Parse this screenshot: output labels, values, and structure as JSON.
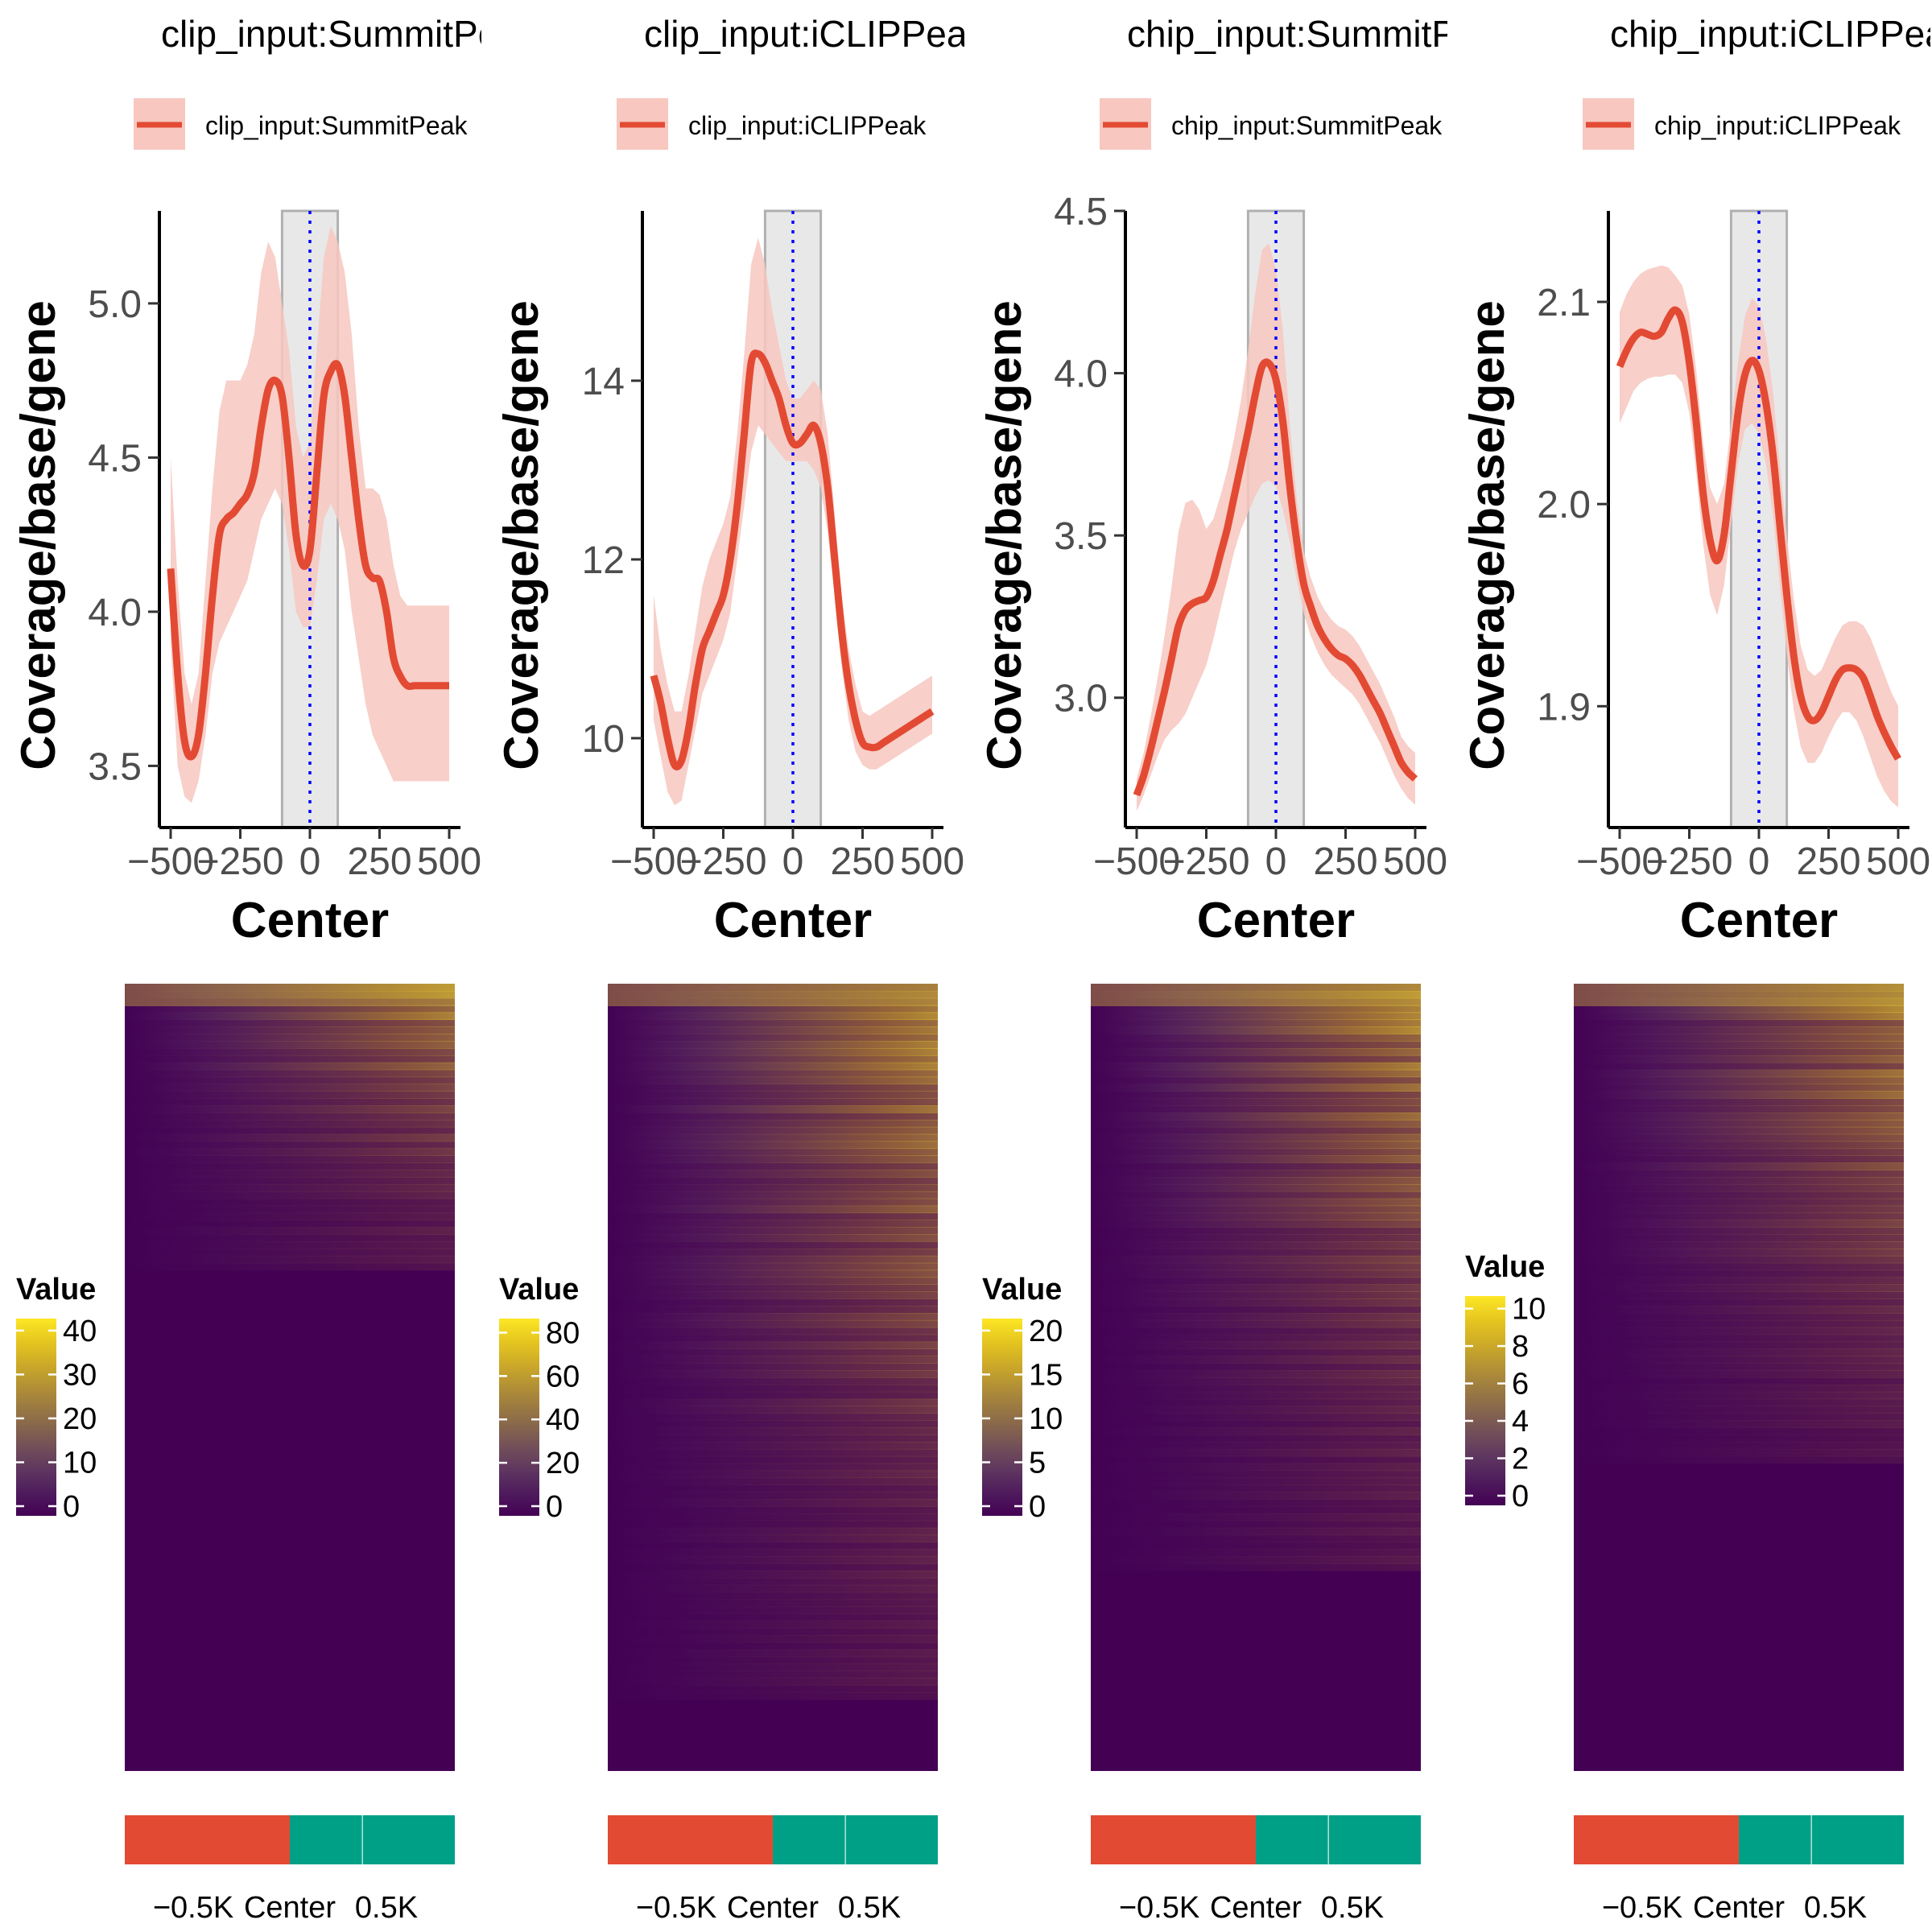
{
  "figure": {
    "heatmap_legend_title": "Value",
    "heatmap_xlabels": [
      "−0.5K",
      "Center",
      "0.5K"
    ],
    "colors": {
      "line": "#e34a33",
      "ribbon": "#f7c7c0",
      "center_line": "#0000ff",
      "window_fill": "#e8e8e8",
      "window_stroke": "#b0b0b0",
      "viridis_low": "#440154",
      "viridis_mid": "#7a5a4a",
      "viridis_high": "#fde725",
      "anno_left": "#e34a33",
      "anno_right": "#00a087"
    }
  },
  "chart_data": [
    {
      "type": "line",
      "title": "clip_input:SummitPeak",
      "legend": "clip_input:SummitPeak",
      "xlabel": "Center",
      "ylabel": "Coverage/base/gene",
      "xlim": [
        -520,
        520
      ],
      "ylim": [
        3.3,
        5.3
      ],
      "xticks": [
        -500,
        -250,
        0,
        250,
        500
      ],
      "xtick_labels": [
        "−500",
        "−250",
        "0",
        "250",
        "500"
      ],
      "yticks": [
        3.5,
        4.0,
        4.5,
        5.0
      ],
      "ytick_labels": [
        "3.5",
        "4.0",
        "4.5",
        "5.0"
      ],
      "center_window": [
        -100,
        100
      ],
      "x": [
        -500,
        -475,
        -450,
        -425,
        -400,
        -375,
        -350,
        -325,
        -300,
        -275,
        -250,
        -225,
        -200,
        -175,
        -150,
        -125,
        -100,
        -75,
        -50,
        -25,
        0,
        25,
        50,
        75,
        100,
        125,
        150,
        175,
        200,
        225,
        250,
        275,
        300,
        325,
        350,
        375,
        400,
        425,
        450,
        475,
        500
      ],
      "y": [
        4.14,
        3.8,
        3.58,
        3.53,
        3.6,
        3.8,
        4.05,
        4.25,
        4.3,
        4.32,
        4.35,
        4.38,
        4.45,
        4.6,
        4.72,
        4.75,
        4.7,
        4.5,
        4.25,
        4.15,
        4.2,
        4.45,
        4.7,
        4.78,
        4.8,
        4.7,
        4.5,
        4.3,
        4.15,
        4.11,
        4.1,
        4.0,
        3.85,
        3.79,
        3.76,
        3.76,
        3.76,
        3.76,
        3.76,
        3.76,
        3.76
      ],
      "lower": [
        3.9,
        3.5,
        3.4,
        3.38,
        3.45,
        3.6,
        3.8,
        3.9,
        3.95,
        4.0,
        4.05,
        4.1,
        4.2,
        4.3,
        4.35,
        4.4,
        4.35,
        4.2,
        4.0,
        3.95,
        3.95,
        4.1,
        4.3,
        4.35,
        4.3,
        4.2,
        4.0,
        3.85,
        3.7,
        3.6,
        3.55,
        3.5,
        3.45,
        3.45,
        3.45,
        3.45,
        3.45,
        3.45,
        3.45,
        3.45,
        3.45
      ],
      "upper": [
        4.5,
        4.1,
        3.8,
        3.7,
        3.8,
        4.1,
        4.4,
        4.65,
        4.75,
        4.75,
        4.75,
        4.8,
        4.9,
        5.1,
        5.2,
        5.15,
        5.0,
        4.85,
        4.6,
        4.5,
        4.55,
        4.85,
        5.15,
        5.25,
        5.2,
        5.1,
        4.9,
        4.6,
        4.4,
        4.4,
        4.38,
        4.3,
        4.15,
        4.05,
        4.02,
        4.02,
        4.02,
        4.02,
        4.02,
        4.02,
        4.02
      ],
      "heatmap": {
        "legend_ticks": [
          0,
          10,
          20,
          30,
          40
        ],
        "legend_max": 42,
        "annotation_split": 0.5
      }
    },
    {
      "type": "line",
      "title": "clip_input:iCLIPPeak",
      "legend": "clip_input:iCLIPPeak",
      "xlabel": "Center",
      "ylabel": "Coverage/base/gene",
      "xlim": [
        -520,
        520
      ],
      "ylim": [
        9.0,
        15.9
      ],
      "xticks": [
        -500,
        -250,
        0,
        250,
        500
      ],
      "xtick_labels": [
        "−500",
        "−250",
        "0",
        "250",
        "500"
      ],
      "yticks": [
        10,
        12,
        14
      ],
      "ytick_labels": [
        "10",
        "12",
        "14"
      ],
      "center_window": [
        -100,
        100
      ],
      "x": [
        -500,
        -475,
        -450,
        -425,
        -400,
        -375,
        -350,
        -325,
        -300,
        -275,
        -250,
        -225,
        -200,
        -175,
        -150,
        -125,
        -100,
        -75,
        -50,
        -25,
        0,
        25,
        50,
        75,
        100,
        125,
        150,
        175,
        200,
        225,
        250,
        275,
        300,
        325,
        350,
        375,
        400,
        425,
        450,
        475,
        500
      ],
      "y": [
        10.7,
        10.4,
        10.0,
        9.7,
        9.75,
        10.1,
        10.6,
        11.0,
        11.2,
        11.4,
        11.6,
        12.0,
        12.6,
        13.4,
        14.2,
        14.3,
        14.2,
        14.0,
        13.8,
        13.5,
        13.3,
        13.3,
        13.4,
        13.5,
        13.3,
        12.8,
        12.0,
        11.2,
        10.6,
        10.2,
        9.95,
        9.9,
        9.9,
        9.95,
        10.0,
        10.05,
        10.1,
        10.15,
        10.2,
        10.25,
        10.3
      ],
      "lower": [
        10.2,
        9.8,
        9.4,
        9.25,
        9.3,
        9.7,
        10.1,
        10.5,
        10.7,
        10.9,
        11.1,
        11.4,
        12.0,
        12.6,
        13.2,
        13.5,
        13.4,
        13.3,
        13.2,
        13.1,
        13.1,
        13.1,
        13.1,
        13.0,
        12.8,
        12.3,
        11.6,
        10.8,
        10.2,
        9.85,
        9.7,
        9.65,
        9.65,
        9.7,
        9.75,
        9.8,
        9.85,
        9.9,
        9.95,
        10.0,
        10.05
      ],
      "upper": [
        11.6,
        11.0,
        10.6,
        10.3,
        10.3,
        10.7,
        11.2,
        11.7,
        12.0,
        12.2,
        12.4,
        12.7,
        13.4,
        14.3,
        15.3,
        15.6,
        15.3,
        14.8,
        14.4,
        14.0,
        13.8,
        13.8,
        13.9,
        14.0,
        13.9,
        13.4,
        12.5,
        11.6,
        11.0,
        10.6,
        10.3,
        10.25,
        10.3,
        10.35,
        10.4,
        10.45,
        10.5,
        10.55,
        10.6,
        10.65,
        10.7
      ],
      "heatmap": {
        "legend_ticks": [
          0,
          20,
          40,
          60,
          80
        ],
        "legend_max": 85,
        "annotation_split": 0.5
      }
    },
    {
      "type": "line",
      "title": "chip_input:SummitPeak",
      "legend": "chip_input:SummitPeak",
      "xlabel": "Center",
      "ylabel": "Coverage/base/gene",
      "xlim": [
        -520,
        520
      ],
      "ylim": [
        2.6,
        4.5
      ],
      "xticks": [
        -500,
        -250,
        0,
        250,
        500
      ],
      "xtick_labels": [
        "−500",
        "−250",
        "0",
        "250",
        "500"
      ],
      "yticks": [
        3.0,
        3.5,
        4.0,
        4.5
      ],
      "ytick_labels": [
        "3.0",
        "3.5",
        "4.0",
        "4.5"
      ],
      "center_window": [
        -100,
        100
      ],
      "x": [
        -500,
        -475,
        -450,
        -425,
        -400,
        -375,
        -350,
        -325,
        -300,
        -275,
        -250,
        -225,
        -200,
        -175,
        -150,
        -125,
        -100,
        -75,
        -50,
        -25,
        0,
        25,
        50,
        75,
        100,
        125,
        150,
        175,
        200,
        225,
        250,
        275,
        300,
        325,
        350,
        375,
        400,
        425,
        450,
        475,
        500
      ],
      "y": [
        2.7,
        2.76,
        2.84,
        2.93,
        3.02,
        3.12,
        3.22,
        3.27,
        3.29,
        3.3,
        3.31,
        3.36,
        3.44,
        3.52,
        3.62,
        3.72,
        3.82,
        3.93,
        4.02,
        4.03,
        3.98,
        3.85,
        3.65,
        3.48,
        3.35,
        3.28,
        3.22,
        3.18,
        3.15,
        3.13,
        3.12,
        3.1,
        3.07,
        3.03,
        2.99,
        2.95,
        2.9,
        2.85,
        2.8,
        2.77,
        2.75
      ],
      "lower": [
        2.65,
        2.7,
        2.76,
        2.82,
        2.87,
        2.9,
        2.92,
        2.95,
        3.0,
        3.05,
        3.1,
        3.18,
        3.27,
        3.36,
        3.45,
        3.52,
        3.57,
        3.62,
        3.66,
        3.67,
        3.65,
        3.58,
        3.48,
        3.36,
        3.26,
        3.19,
        3.14,
        3.1,
        3.07,
        3.05,
        3.03,
        3.01,
        2.98,
        2.94,
        2.9,
        2.86,
        2.81,
        2.76,
        2.72,
        2.69,
        2.67
      ],
      "upper": [
        2.75,
        2.83,
        2.94,
        3.06,
        3.19,
        3.34,
        3.51,
        3.6,
        3.61,
        3.58,
        3.52,
        3.55,
        3.62,
        3.7,
        3.8,
        3.92,
        4.07,
        4.24,
        4.38,
        4.4,
        4.32,
        4.13,
        3.84,
        3.61,
        3.45,
        3.37,
        3.31,
        3.27,
        3.24,
        3.22,
        3.21,
        3.19,
        3.16,
        3.12,
        3.08,
        3.04,
        2.99,
        2.94,
        2.88,
        2.85,
        2.83
      ],
      "heatmap": {
        "legend_ticks": [
          0,
          5,
          10,
          15,
          20
        ],
        "legend_max": 21,
        "annotation_split": 0.5
      }
    },
    {
      "type": "line",
      "title": "chip_input:iCLIPPeak",
      "legend": "chip_input:iCLIPPeak",
      "xlabel": "Center",
      "ylabel": "Coverage/base/gene",
      "xlim": [
        -520,
        520
      ],
      "ylim": [
        1.84,
        2.145
      ],
      "xticks": [
        -500,
        -250,
        0,
        250,
        500
      ],
      "xtick_labels": [
        "−500",
        "−250",
        "0",
        "250",
        "500"
      ],
      "yticks": [
        1.9,
        2.0,
        2.1
      ],
      "ytick_labels": [
        "1.9",
        "2.0",
        "2.1"
      ],
      "center_window": [
        -100,
        100
      ],
      "x": [
        -500,
        -475,
        -450,
        -425,
        -400,
        -375,
        -350,
        -325,
        -300,
        -275,
        -250,
        -225,
        -200,
        -175,
        -150,
        -125,
        -100,
        -75,
        -50,
        -25,
        0,
        25,
        50,
        75,
        100,
        125,
        150,
        175,
        200,
        225,
        250,
        275,
        300,
        325,
        350,
        375,
        400,
        425,
        450,
        475,
        500
      ],
      "y": [
        2.068,
        2.076,
        2.082,
        2.085,
        2.084,
        2.083,
        2.085,
        2.092,
        2.096,
        2.09,
        2.07,
        2.04,
        2.005,
        1.982,
        1.972,
        1.985,
        2.015,
        2.045,
        2.064,
        2.071,
        2.066,
        2.05,
        2.025,
        1.99,
        1.955,
        1.925,
        1.905,
        1.895,
        1.893,
        1.897,
        1.905,
        1.913,
        1.918,
        1.919,
        1.918,
        1.914,
        1.905,
        1.895,
        1.887,
        1.88,
        1.874
      ],
      "lower": [
        2.04,
        2.048,
        2.056,
        2.06,
        2.062,
        2.063,
        2.063,
        2.064,
        2.064,
        2.06,
        2.045,
        2.015,
        1.98,
        1.955,
        1.945,
        1.96,
        1.99,
        2.02,
        2.037,
        2.04,
        2.035,
        2.02,
        1.995,
        1.96,
        1.926,
        1.898,
        1.88,
        1.872,
        1.872,
        1.877,
        1.885,
        1.892,
        1.897,
        1.897,
        1.893,
        1.885,
        1.875,
        1.865,
        1.858,
        1.853,
        1.85
      ],
      "upper": [
        2.095,
        2.104,
        2.11,
        2.114,
        2.116,
        2.117,
        2.118,
        2.117,
        2.113,
        2.108,
        2.094,
        2.066,
        2.03,
        2.008,
        2.0,
        2.01,
        2.04,
        2.07,
        2.093,
        2.102,
        2.098,
        2.082,
        2.056,
        2.02,
        1.985,
        1.953,
        1.93,
        1.918,
        1.915,
        1.918,
        1.926,
        1.934,
        1.94,
        1.942,
        1.942,
        1.94,
        1.934,
        1.925,
        1.916,
        1.907,
        1.9
      ],
      "heatmap": {
        "legend_ticks": [
          0,
          2,
          4,
          6,
          8,
          10
        ],
        "legend_max": 10.5,
        "annotation_split": 0.5
      }
    }
  ]
}
